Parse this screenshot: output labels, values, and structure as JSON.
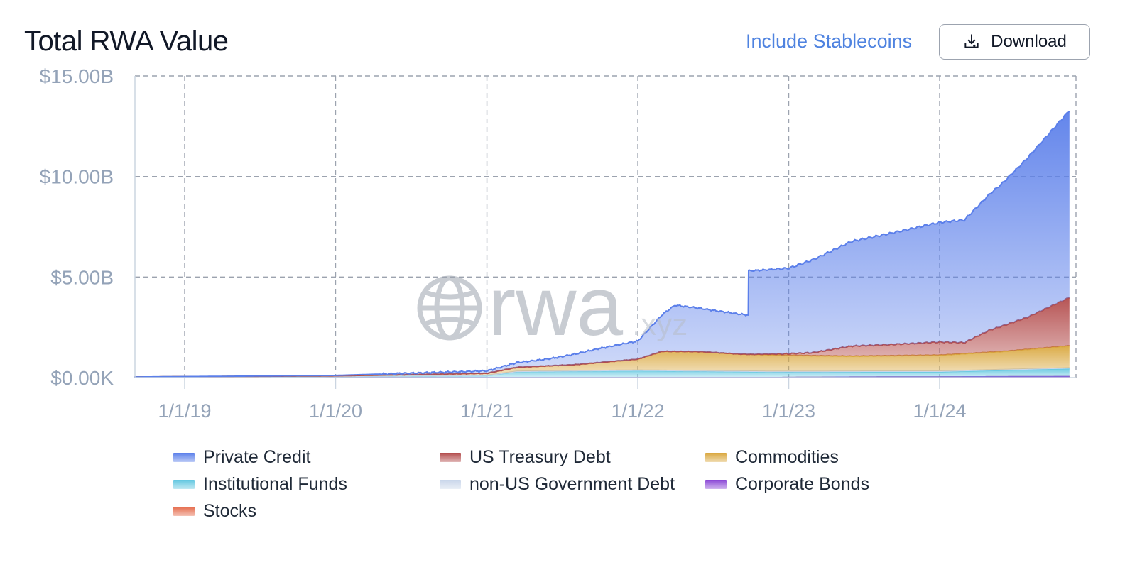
{
  "header": {
    "title": "Total RWA Value",
    "stablecoins_label": "Include Stablecoins",
    "download_label": "Download",
    "download_icon": "download-tray-icon"
  },
  "watermark": {
    "text": "rwa",
    "suffix": ".xyz",
    "icon": "globe-icon"
  },
  "colors": {
    "private_credit": "#5b7fea",
    "us_treasury": "#b34c4c",
    "commodities": "#d9a73e",
    "institutional_funds": "#62c7e0",
    "non_us_gov": "#c9d6ea",
    "corporate_bonds": "#8a46d6",
    "stocks": "#e56a4a",
    "grid": "#9ca3af",
    "axis_text": "#94a3b8"
  },
  "chart_data": {
    "type": "area",
    "stacked": true,
    "title": "Total RWA Value",
    "xlabel": "",
    "ylabel": "",
    "ylim": [
      0,
      15
    ],
    "y_unit": "billions USD",
    "y_ticks": [
      0,
      5,
      10,
      15
    ],
    "y_tick_labels": [
      "$0.00K",
      "$5.00B",
      "$10.00B",
      "$15.00B"
    ],
    "x_tick_dates": [
      "2019-01-01",
      "2020-01-01",
      "2021-01-01",
      "2022-01-01",
      "2023-01-01",
      "2024-01-01"
    ],
    "x_tick_labels": [
      "1/1/19",
      "1/1/20",
      "1/1/21",
      "1/1/22",
      "1/1/23",
      "1/1/24"
    ],
    "xlim": [
      "2018-09-01",
      "2024-12-31"
    ],
    "grid": true,
    "legend_position": "bottom",
    "series": [
      {
        "name": "Stocks",
        "points": [
          [
            "2018-09-01",
            0
          ],
          [
            "2022-12-01",
            0
          ],
          [
            "2023-06-01",
            0.02
          ],
          [
            "2024-01-01",
            0.03
          ],
          [
            "2024-11-10",
            0.05
          ]
        ]
      },
      {
        "name": "Corporate Bonds",
        "points": [
          [
            "2018-09-01",
            0
          ],
          [
            "2024-11-10",
            0
          ]
        ]
      },
      {
        "name": "Institutional Funds",
        "points": [
          [
            "2018-09-01",
            0.03
          ],
          [
            "2020-01-01",
            0.06
          ],
          [
            "2021-01-01",
            0.1
          ],
          [
            "2021-03-15",
            0.3
          ],
          [
            "2022-01-01",
            0.35
          ],
          [
            "2022-06-01",
            0.32
          ],
          [
            "2023-01-01",
            0.28
          ],
          [
            "2024-01-01",
            0.26
          ],
          [
            "2024-06-01",
            0.33
          ],
          [
            "2024-11-10",
            0.4
          ]
        ]
      },
      {
        "name": "non-US Government Debt",
        "points": [
          [
            "2018-09-01",
            0
          ],
          [
            "2022-06-01",
            0.02
          ],
          [
            "2024-11-10",
            0.03
          ]
        ]
      },
      {
        "name": "Commodities",
        "points": [
          [
            "2018-09-01",
            0
          ],
          [
            "2020-01-01",
            0.02
          ],
          [
            "2021-01-01",
            0.1
          ],
          [
            "2021-03-15",
            0.2
          ],
          [
            "2021-08-01",
            0.3
          ],
          [
            "2022-01-01",
            0.55
          ],
          [
            "2022-03-01",
            0.95
          ],
          [
            "2022-06-01",
            0.95
          ],
          [
            "2022-09-01",
            0.85
          ],
          [
            "2023-01-01",
            0.8
          ],
          [
            "2023-06-01",
            0.75
          ],
          [
            "2024-01-01",
            0.8
          ],
          [
            "2024-06-01",
            0.9
          ],
          [
            "2024-11-10",
            1.1
          ]
        ]
      },
      {
        "name": "US Treasury Debt",
        "points": [
          [
            "2018-09-01",
            0
          ],
          [
            "2022-10-01",
            0
          ],
          [
            "2023-01-01",
            0.08
          ],
          [
            "2023-03-01",
            0.15
          ],
          [
            "2023-06-01",
            0.5
          ],
          [
            "2023-09-01",
            0.55
          ],
          [
            "2024-01-01",
            0.65
          ],
          [
            "2024-03-01",
            0.55
          ],
          [
            "2024-05-01",
            1.1
          ],
          [
            "2024-08-01",
            1.6
          ],
          [
            "2024-11-10",
            2.4
          ]
        ]
      },
      {
        "name": "Private Credit",
        "points": [
          [
            "2018-09-01",
            0
          ],
          [
            "2020-01-01",
            0.02
          ],
          [
            "2021-01-01",
            0.12
          ],
          [
            "2021-06-01",
            0.35
          ],
          [
            "2021-10-01",
            0.7
          ],
          [
            "2022-01-01",
            0.9
          ],
          [
            "2022-04-01",
            2.3
          ],
          [
            "2022-06-01",
            2.15
          ],
          [
            "2022-09-25",
            1.95
          ],
          [
            "2022-09-26",
            4.15
          ],
          [
            "2023-01-01",
            4.25
          ],
          [
            "2023-06-01",
            5.2
          ],
          [
            "2024-01-01",
            5.95
          ],
          [
            "2024-03-01",
            6.1
          ],
          [
            "2024-06-01",
            7.1
          ],
          [
            "2024-11-10",
            9.3
          ]
        ]
      }
    ]
  },
  "legend": {
    "items": [
      {
        "label": "Private Credit",
        "color": "#5b7fea"
      },
      {
        "label": "US Treasury Debt",
        "color": "#b34c4c"
      },
      {
        "label": "Commodities",
        "color": "#d9a73e"
      },
      {
        "label": "Institutional Funds",
        "color": "#62c7e0"
      },
      {
        "label": "non-US Government Debt",
        "color": "#c9d6ea"
      },
      {
        "label": "Corporate Bonds",
        "color": "#8a46d6"
      },
      {
        "label": "Stocks",
        "color": "#e56a4a"
      }
    ]
  }
}
